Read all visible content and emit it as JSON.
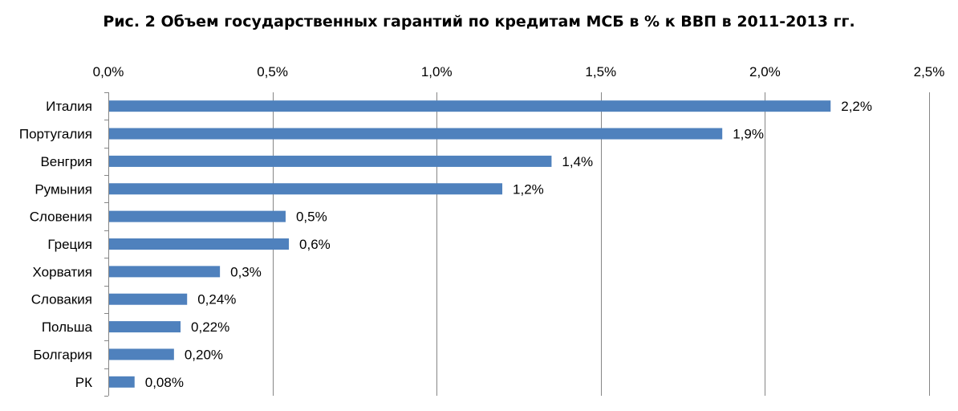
{
  "chart_data": {
    "type": "bar",
    "orientation": "horizontal",
    "title": "Рис. 2 Объем государственных гарантий по кредитам МСБ в % к ВВП в 2011-2013 гг.",
    "xlabel": "",
    "ylabel": "",
    "xlim": [
      0,
      2.5
    ],
    "x_tick_labels": [
      "0,0%",
      "0,5%",
      "1,0%",
      "1,5%",
      "2,0%",
      "2,5%"
    ],
    "x_tick_values": [
      0,
      0.5,
      1.0,
      1.5,
      2.0,
      2.5
    ],
    "x_axis_position": "top",
    "grid": "vertical",
    "categories": [
      "Италия",
      "Португалия",
      "Венгрия",
      "Румыния",
      "Словения",
      "Греция",
      "Хорватия",
      "Словакия",
      "Польша",
      "Болгария",
      "РК"
    ],
    "values": [
      2.2,
      1.87,
      1.35,
      1.2,
      0.54,
      0.55,
      0.34,
      0.24,
      0.22,
      0.2,
      0.08
    ],
    "data_labels": [
      "2,2%",
      "1,9%",
      "1,4%",
      "1,2%",
      "0,5%",
      "0,6%",
      "0,3%",
      "0,24%",
      "0,22%",
      "0,20%",
      "0,08%"
    ],
    "bar_color": "#4f81bd",
    "grid_color": "#868686"
  }
}
